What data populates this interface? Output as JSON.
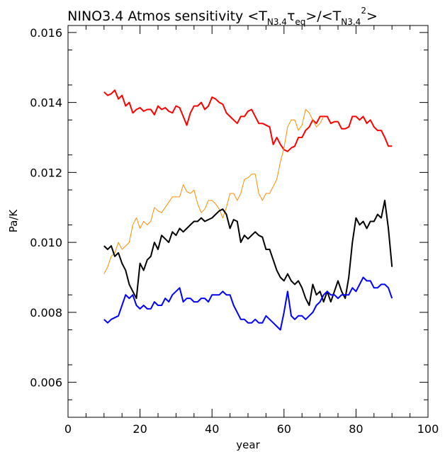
{
  "chart_data": {
    "type": "line",
    "title": {
      "prefix": "NINO3.4 Atmos sensitivity <T",
      "sub1": "N3.4",
      "tau": "τ",
      "sub2": "eq",
      "mid": ">/<T",
      "sub3": "N3.4",
      "sup": "2",
      "suffix": ">"
    },
    "xlabel": "year",
    "ylabel": "Pa/K",
    "xlim": [
      0,
      100
    ],
    "ylim": [
      0.005,
      0.0162
    ],
    "xticks": [
      0,
      20,
      40,
      60,
      80,
      100
    ],
    "xtick_labels": [
      "0",
      "20",
      "40",
      "60",
      "80",
      "100"
    ],
    "yticks": [
      0.006,
      0.008,
      0.01,
      0.012,
      0.014,
      0.016
    ],
    "ytick_labels": [
      "0.006",
      "0.008",
      "0.010",
      "0.012",
      "0.014",
      "0.016"
    ],
    "grid": false,
    "series": [
      {
        "color": "#ff0000",
        "x": [
          10,
          11,
          12,
          13,
          14,
          15,
          16,
          17,
          18,
          19,
          20,
          21,
          22,
          23,
          24,
          25,
          26,
          27,
          28,
          29,
          30,
          31,
          32,
          33,
          34,
          35,
          36,
          37,
          38,
          39,
          40,
          41,
          42,
          43,
          44,
          45,
          46,
          47,
          48,
          49,
          50,
          51,
          52,
          53,
          54,
          55,
          56,
          57,
          58,
          59,
          60,
          61,
          62,
          63,
          64,
          65,
          66,
          67,
          68,
          69,
          70,
          71,
          72,
          73,
          74,
          75,
          76,
          77,
          78,
          79,
          80,
          81,
          82,
          83,
          84,
          85,
          86,
          87,
          88,
          89,
          90
        ],
        "values": [
          0.0143,
          0.0142,
          0.01425,
          0.01435,
          0.0141,
          0.0142,
          0.0139,
          0.014,
          0.0137,
          0.0138,
          0.01385,
          0.01375,
          0.0138,
          0.0138,
          0.01365,
          0.0139,
          0.0138,
          0.01385,
          0.01375,
          0.0137,
          0.0139,
          0.01385,
          0.0136,
          0.01335,
          0.0137,
          0.0139,
          0.0139,
          0.014,
          0.0138,
          0.0139,
          0.01415,
          0.0141,
          0.014,
          0.01395,
          0.0137,
          0.0136,
          0.0135,
          0.0134,
          0.0136,
          0.0136,
          0.01375,
          0.0138,
          0.0136,
          0.0134,
          0.0134,
          0.01335,
          0.0133,
          0.0128,
          0.013,
          0.0128,
          0.01265,
          0.0126,
          0.0127,
          0.01275,
          0.013,
          0.013,
          0.0132,
          0.0133,
          0.0135,
          0.0134,
          0.0136,
          0.0136,
          0.0136,
          0.0134,
          0.01345,
          0.01345,
          0.01325,
          0.01325,
          0.0133,
          0.0136,
          0.0136,
          0.0135,
          0.0136,
          0.0134,
          0.0135,
          0.0133,
          0.0132,
          0.0132,
          0.013,
          0.01275,
          0.01275
        ]
      },
      {
        "color": "#ff8c00",
        "x": [
          10,
          11,
          12,
          13,
          14,
          15,
          16,
          17,
          18,
          19,
          20,
          21,
          22,
          23,
          24,
          25,
          26,
          27,
          28,
          29,
          30,
          31,
          32,
          33,
          34,
          35,
          36,
          37,
          38,
          39,
          40,
          41,
          42,
          43,
          44,
          45,
          46,
          47,
          48,
          49,
          50,
          51,
          52,
          53,
          54,
          55,
          56,
          57,
          58,
          59,
          60,
          61,
          62,
          63,
          64,
          65,
          66,
          67,
          68,
          69,
          70,
          71
        ],
        "values": [
          0.0091,
          0.0093,
          0.0096,
          0.0097,
          0.01,
          0.0098,
          0.0099,
          0.01,
          0.0105,
          0.0107,
          0.0104,
          0.0106,
          0.0105,
          0.0106,
          0.011,
          0.0109,
          0.01085,
          0.011,
          0.01115,
          0.0113,
          0.0113,
          0.0113,
          0.01165,
          0.01145,
          0.0114,
          0.0115,
          0.0111,
          0.01085,
          0.01095,
          0.0112,
          0.0112,
          0.0111,
          0.01095,
          0.0107,
          0.011,
          0.0114,
          0.0114,
          0.0112,
          0.0114,
          0.0118,
          0.01185,
          0.01195,
          0.01195,
          0.0114,
          0.0112,
          0.0114,
          0.0114,
          0.0116,
          0.0118,
          0.0123,
          0.0127,
          0.0133,
          0.0135,
          0.0135,
          0.0132,
          0.01335,
          0.0138,
          0.0137,
          0.0135,
          0.0133,
          0.0134,
          0.0136
        ]
      },
      {
        "color": "#000000",
        "x": [
          10,
          11,
          12,
          13,
          14,
          15,
          16,
          17,
          18,
          19,
          20,
          21,
          22,
          23,
          24,
          25,
          26,
          27,
          28,
          29,
          30,
          31,
          32,
          33,
          34,
          35,
          36,
          37,
          38,
          39,
          40,
          41,
          42,
          43,
          44,
          45,
          46,
          47,
          48,
          49,
          50,
          51,
          52,
          53,
          54,
          55,
          56,
          57,
          58,
          59,
          60,
          61,
          62,
          63,
          64,
          65,
          66,
          67,
          68,
          69,
          70,
          71,
          72,
          73,
          74,
          75,
          76,
          77,
          78,
          79,
          80,
          81,
          82,
          83,
          84,
          85,
          86,
          87,
          88,
          89,
          90
        ],
        "values": [
          0.0099,
          0.0098,
          0.0099,
          0.0096,
          0.0097,
          0.0094,
          0.0092,
          0.0088,
          0.0086,
          0.0084,
          0.0094,
          0.0092,
          0.0095,
          0.0096,
          0.01,
          0.0098,
          0.0102,
          0.0101,
          0.01,
          0.0103,
          0.0102,
          0.0104,
          0.0103,
          0.0104,
          0.0105,
          0.0106,
          0.0106,
          0.0107,
          0.0106,
          0.01065,
          0.0107,
          0.0108,
          0.0109,
          0.01095,
          0.0108,
          0.0104,
          0.01065,
          0.0106,
          0.01,
          0.0102,
          0.0101,
          0.0102,
          0.0103,
          0.0102,
          0.01015,
          0.0098,
          0.0098,
          0.0095,
          0.0092,
          0.009,
          0.0089,
          0.0091,
          0.0089,
          0.0088,
          0.0089,
          0.0087,
          0.0084,
          0.0082,
          0.0088,
          0.0085,
          0.0086,
          0.0083,
          0.0086,
          0.0083,
          0.0086,
          0.0089,
          0.0086,
          0.0084,
          0.009,
          0.01,
          0.0107,
          0.0105,
          0.0106,
          0.0104,
          0.0106,
          0.0106,
          0.0108,
          0.0107,
          0.0112,
          0.0104,
          0.0093
        ]
      },
      {
        "color": "#0000ff",
        "x": [
          10,
          11,
          12,
          13,
          14,
          15,
          16,
          17,
          18,
          19,
          20,
          21,
          22,
          23,
          24,
          25,
          26,
          27,
          28,
          29,
          30,
          31,
          32,
          33,
          34,
          35,
          36,
          37,
          38,
          39,
          40,
          41,
          42,
          43,
          44,
          45,
          46,
          47,
          48,
          49,
          50,
          51,
          52,
          53,
          54,
          55,
          56,
          57,
          58,
          59,
          60,
          61,
          62,
          63,
          64,
          65,
          66,
          67,
          68,
          69,
          70,
          71,
          72,
          73,
          74,
          75,
          76,
          77,
          78,
          79,
          80,
          81,
          82,
          83,
          84,
          85,
          86,
          87,
          88,
          89,
          90
        ],
        "values": [
          0.0078,
          0.0077,
          0.0078,
          0.00785,
          0.0079,
          0.0082,
          0.0085,
          0.0084,
          0.0085,
          0.0082,
          0.0081,
          0.0082,
          0.0081,
          0.0081,
          0.0083,
          0.0082,
          0.0082,
          0.0084,
          0.0083,
          0.0085,
          0.0086,
          0.0087,
          0.0083,
          0.0084,
          0.0084,
          0.0083,
          0.0083,
          0.0084,
          0.0084,
          0.0083,
          0.0085,
          0.0085,
          0.0085,
          0.0086,
          0.0085,
          0.0085,
          0.0082,
          0.008,
          0.0078,
          0.0078,
          0.0077,
          0.0077,
          0.0078,
          0.0077,
          0.0077,
          0.0079,
          0.0078,
          0.0077,
          0.0076,
          0.0075,
          0.008,
          0.0086,
          0.0079,
          0.0078,
          0.0079,
          0.0079,
          0.0078,
          0.0079,
          0.008,
          0.0082,
          0.0083,
          0.0085,
          0.0086,
          0.0085,
          0.0085,
          0.0084,
          0.0085,
          0.0085,
          0.0085,
          0.0087,
          0.0086,
          0.0088,
          0.009,
          0.0089,
          0.0089,
          0.0087,
          0.0087,
          0.0088,
          0.0088,
          0.0087,
          0.0084
        ]
      }
    ]
  }
}
